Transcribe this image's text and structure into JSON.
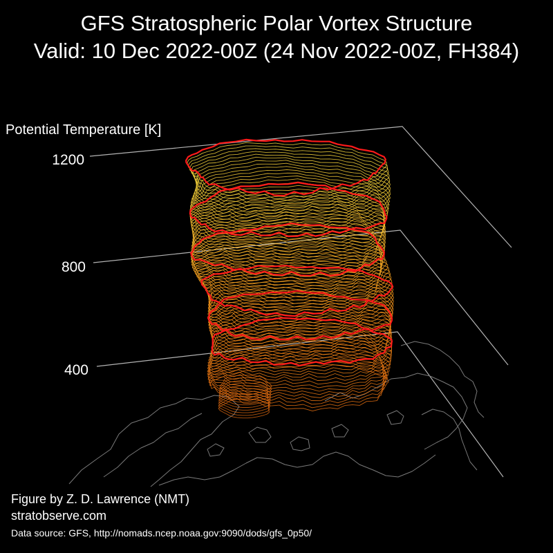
{
  "chart_data": {
    "type": "3d-isosurface",
    "title": "GFS Stratospheric Polar Vortex Structure",
    "subtitle": "Valid: 10 Dec 2022-00Z  (24 Nov 2022-00Z, FH384)",
    "zlabel": "Potential Temperature [K]",
    "z_ticks": [
      400,
      800,
      1200
    ],
    "zlim": [
      300,
      1200
    ],
    "highlight_levels": [
      500,
      600,
      700,
      850,
      1000
    ],
    "colors": {
      "background": "#000000",
      "gridline": "#b4b4b4",
      "coastline": "#7a7a7a",
      "low_contour": "#e06a10",
      "mid_contour": "#ff9a1a",
      "high_contour": "#f2dc40",
      "highlight_contour": "#ff1a1a"
    }
  },
  "footer": {
    "credit": "Figure by Z. D. Lawrence (NMT)",
    "website": "stratobserve.com",
    "source": "Data source: GFS, http://nomads.ncep.noaa.gov:9090/dods/gfs_0p50/"
  }
}
